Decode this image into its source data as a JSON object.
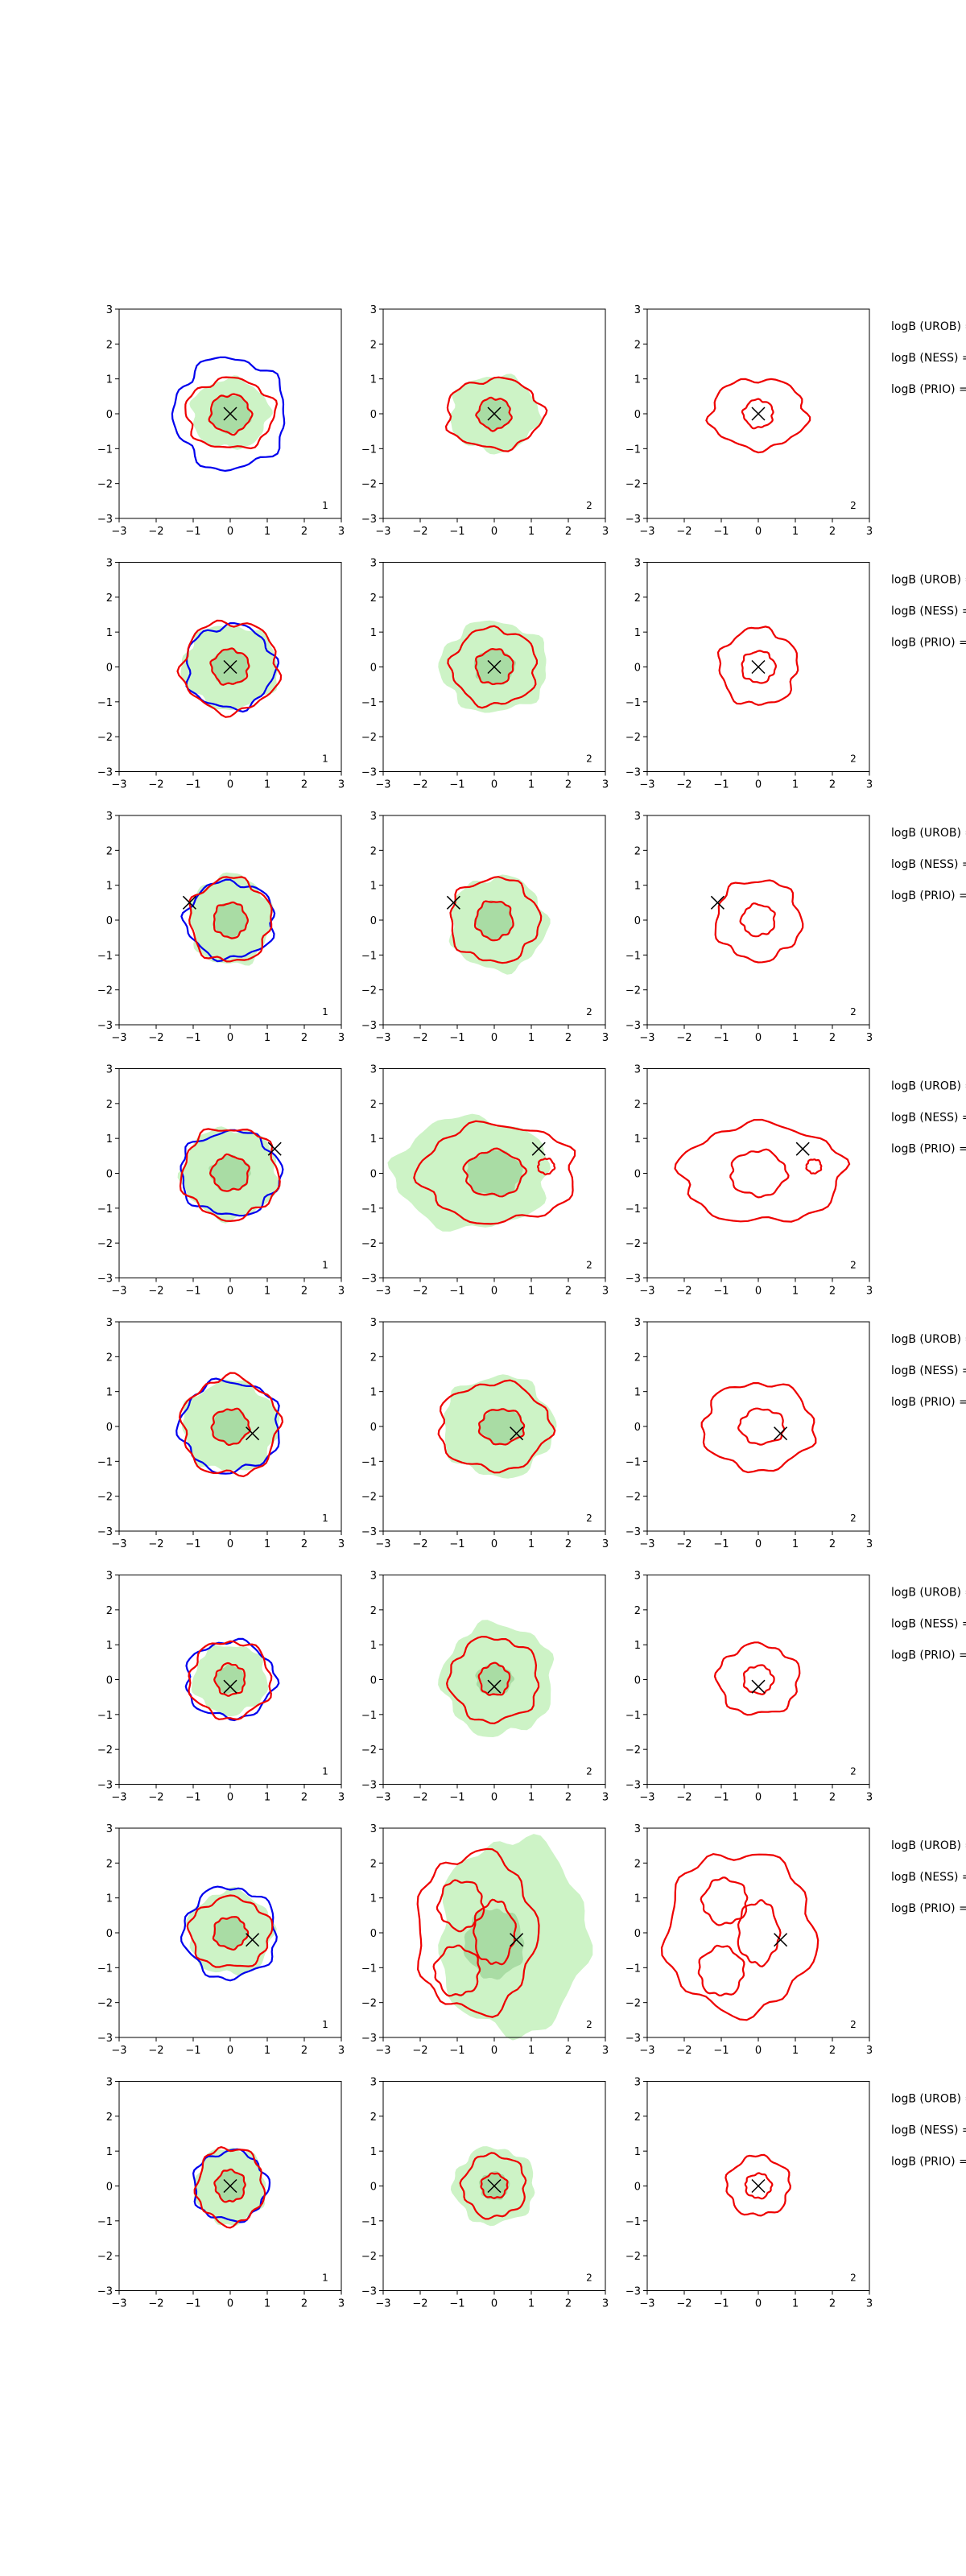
{
  "colors": {
    "fill_light": "#cdf3c6",
    "fill_dark": "#a9dca4",
    "contour_blue": "#0000ee",
    "contour_red": "#ee0000",
    "marker": "#000000"
  },
  "chart_data": {
    "type": "contour",
    "layout": {
      "rows": 8,
      "cols": 3
    },
    "axis": {
      "xlim": [
        -3,
        3
      ],
      "ylim": [
        -3,
        3
      ],
      "xticks": [
        "−3",
        "−2",
        "−1",
        "0",
        "1",
        "2",
        "3"
      ],
      "yticks": [
        "3",
        "2",
        "1",
        "0",
        "−1",
        "−2",
        "−3"
      ]
    },
    "column_labels": [
      "1",
      "2",
      "2"
    ],
    "row_text": [
      "logB (UROB) =",
      "logB (NESS) =",
      "logB (PRIO) ="
    ],
    "rows": [
      {
        "marker": [
          0,
          0
        ],
        "col1": {
          "fill": [
            [
              0,
              0,
              1.05,
              1.0
            ]
          ],
          "fill_dark": [
            [
              0,
              0,
              0.55,
              0.55
            ]
          ],
          "blue": [
            [
              0,
              0,
              1.5,
              1.6
            ]
          ],
          "red": [
            [
              0,
              0,
              1.2,
              1.0
            ],
            [
              0,
              0,
              0.55,
              0.55
            ]
          ]
        },
        "col2": {
          "fill": [
            [
              0,
              0,
              1.2,
              1.1
            ]
          ],
          "fill_dark": [
            [
              0,
              0,
              0.45,
              0.45
            ]
          ],
          "red": [
            [
              0,
              0,
              1.3,
              1.0
            ],
            [
              0,
              0,
              0.45,
              0.45
            ]
          ]
        },
        "col3": {
          "red": [
            [
              0,
              0,
              1.3,
              1.0
            ],
            [
              0,
              0,
              0.4,
              0.4
            ]
          ]
        }
      },
      {
        "marker": [
          0,
          0
        ],
        "col1": {
          "fill": [
            [
              0,
              0,
              1.3,
              1.2
            ]
          ],
          "fill_dark": [
            [
              0,
              0,
              0.5,
              0.5
            ]
          ],
          "blue": [
            [
              0,
              0,
              1.2,
              1.2
            ]
          ],
          "red": [
            [
              0,
              0,
              1.3,
              1.3
            ],
            [
              0,
              0,
              0.5,
              0.5
            ]
          ]
        },
        "col2": {
          "fill": [
            [
              0,
              0,
              1.45,
              1.3
            ]
          ],
          "fill_dark": [
            [
              0,
              0,
              0.55,
              0.5
            ]
          ],
          "red": [
            [
              0,
              0,
              1.15,
              1.1
            ],
            [
              0,
              0,
              0.5,
              0.5
            ]
          ]
        },
        "col3": {
          "red": [
            [
              0,
              0,
              1.05,
              1.1
            ],
            [
              0,
              0,
              0.45,
              0.45
            ]
          ]
        }
      },
      {
        "marker": [
          -1.1,
          0.5
        ],
        "col1": {
          "fill": [
            [
              0,
              0,
              1.1,
              1.3
            ]
          ],
          "fill_dark": [
            [
              0,
              0,
              0.45,
              0.5
            ]
          ],
          "blue": [
            [
              0,
              0,
              1.2,
              1.1
            ]
          ],
          "red": [
            [
              0,
              0,
              1.1,
              1.2
            ],
            [
              0,
              0,
              0.45,
              0.5
            ]
          ]
        },
        "col2": {
          "fill": [
            [
              0.1,
              -0.1,
              1.3,
              1.35
            ]
          ],
          "fill_dark": [
            [
              0,
              0,
              0.5,
              0.55
            ]
          ],
          "red": [
            [
              0,
              0,
              1.2,
              1.2
            ],
            [
              0,
              0,
              0.5,
              0.55
            ]
          ]
        },
        "col3": {
          "red": [
            [
              0,
              0,
              1.15,
              1.15
            ],
            [
              0,
              0,
              0.45,
              0.45
            ]
          ]
        }
      },
      {
        "marker": [
          1.2,
          0.7
        ],
        "col1": {
          "fill": [
            [
              0,
              0,
              1.3,
              1.3
            ]
          ],
          "fill_dark": [
            [
              0,
              0,
              0.55,
              0.5
            ]
          ],
          "blue": [
            [
              0,
              0,
              1.35,
              1.2
            ]
          ],
          "red": [
            [
              0,
              0,
              1.3,
              1.3
            ],
            [
              0,
              0,
              0.5,
              0.5
            ]
          ]
        },
        "col2": {
          "fill": [
            [
              -0.6,
              0,
              2.1,
              1.6
            ]
          ],
          "fill_dark": [
            [
              0,
              0,
              0.75,
              0.65
            ]
          ],
          "red": [
            [
              0.1,
              0,
              2.1,
              1.4
            ],
            [
              0,
              0,
              0.8,
              0.65
            ],
            [
              1.4,
              0.2,
              0.22,
              0.22
            ]
          ]
        },
        "col3": {
          "red": [
            [
              0.1,
              0,
              2.2,
              1.4
            ],
            [
              0,
              0,
              0.75,
              0.65
            ],
            [
              1.5,
              0.2,
              0.2,
              0.2
            ]
          ]
        }
      },
      {
        "marker": [
          0.6,
          -0.2
        ],
        "col1": {
          "fill": [
            [
              0,
              0,
              1.3,
              1.3
            ]
          ],
          "fill_dark": [
            [
              0,
              0,
              0.5,
              0.5
            ]
          ],
          "blue": [
            [
              0,
              0,
              1.35,
              1.3
            ]
          ],
          "red": [
            [
              0,
              0,
              1.3,
              1.4
            ],
            [
              0,
              0,
              0.5,
              0.5
            ]
          ]
        },
        "col2": {
          "fill": [
            [
              0.1,
              0,
              1.5,
              1.45
            ]
          ],
          "fill_dark": [
            [
              0.2,
              0,
              0.6,
              0.5
            ]
          ],
          "red": [
            [
              0,
              0,
              1.5,
              1.25
            ],
            [
              0.2,
              0,
              0.6,
              0.5
            ]
          ]
        },
        "col3": {
          "red": [
            [
              0,
              0,
              1.5,
              1.25
            ],
            [
              0.1,
              0,
              0.6,
              0.5
            ]
          ]
        }
      },
      {
        "marker": [
          0,
          -0.2
        ],
        "col1": {
          "fill": [
            [
              0,
              0,
              1.0,
              1.0
            ]
          ],
          "fill_dark": [
            [
              0,
              0,
              0.4,
              0.4
            ]
          ],
          "blue": [
            [
              0,
              0,
              1.2,
              1.1
            ]
          ],
          "red": [
            [
              0,
              0,
              1.1,
              1.1
            ],
            [
              0,
              0,
              0.4,
              0.45
            ]
          ]
        },
        "col2": {
          "fill": [
            [
              0.1,
              0,
              1.5,
              1.6
            ]
          ],
          "fill_dark": [
            [
              0,
              0,
              0.5,
              0.45
            ]
          ],
          "red": [
            [
              0,
              0,
              1.2,
              1.2
            ],
            [
              0,
              0,
              0.4,
              0.45
            ]
          ]
        },
        "col3": {
          "red": [
            [
              0,
              0,
              1.1,
              1.0
            ],
            [
              0,
              0,
              0.4,
              0.4
            ]
          ]
        }
      },
      {
        "marker": [
          0.6,
          -0.2
        ],
        "col1": {
          "fill": [
            [
              0,
              0,
              1.15,
              1.2
            ]
          ],
          "fill_dark": [
            [
              0,
              0,
              0.45,
              0.45
            ]
          ],
          "blue": [
            [
              0,
              0,
              1.25,
              1.3
            ]
          ],
          "red": [
            [
              0,
              0,
              1.1,
              1.0
            ],
            [
              0,
              0,
              0.45,
              0.45
            ]
          ]
        },
        "col2": {
          "fill": [
            [
              0.5,
              -0.1,
              2.0,
              2.8
            ]
          ],
          "fill_dark": [
            [
              0,
              -0.3,
              0.8,
              1.0
            ]
          ],
          "red": [
            [
              -0.5,
              0,
              1.6,
              2.3
            ],
            [
              -0.9,
              0.8,
              0.6,
              0.7
            ],
            [
              -1.0,
              -1.1,
              0.6,
              0.7
            ],
            [
              0,
              0,
              0.55,
              0.9
            ]
          ]
        },
        "col3": {
          "red": [
            [
              -0.5,
              0,
              2.0,
              2.3
            ],
            [
              -0.9,
              0.9,
              0.6,
              0.65
            ],
            [
              -1.0,
              -1.1,
              0.6,
              0.7
            ],
            [
              0,
              0,
              0.55,
              0.9
            ]
          ]
        }
      },
      {
        "marker": [
          0,
          0
        ],
        "col1": {
          "fill": [
            [
              0,
              0,
              0.95,
              1.1
            ]
          ],
          "fill_dark": [
            [
              0,
              0,
              0.4,
              0.45
            ]
          ],
          "blue": [
            [
              0,
              0,
              1.0,
              1.0
            ]
          ],
          "red": [
            [
              0,
              0,
              0.9,
              1.1
            ],
            [
              0,
              0,
              0.4,
              0.45
            ]
          ]
        },
        "col2": {
          "fill": [
            [
              0,
              0,
              1.1,
              1.1
            ]
          ],
          "fill_dark": [
            [
              0,
              0,
              0.4,
              0.4
            ]
          ],
          "red": [
            [
              0,
              0,
              0.85,
              0.9
            ],
            [
              0,
              0,
              0.35,
              0.35
            ]
          ]
        },
        "col3": {
          "red": [
            [
              0,
              0,
              0.85,
              0.85
            ],
            [
              0,
              0,
              0.35,
              0.35
            ]
          ]
        }
      }
    ]
  }
}
